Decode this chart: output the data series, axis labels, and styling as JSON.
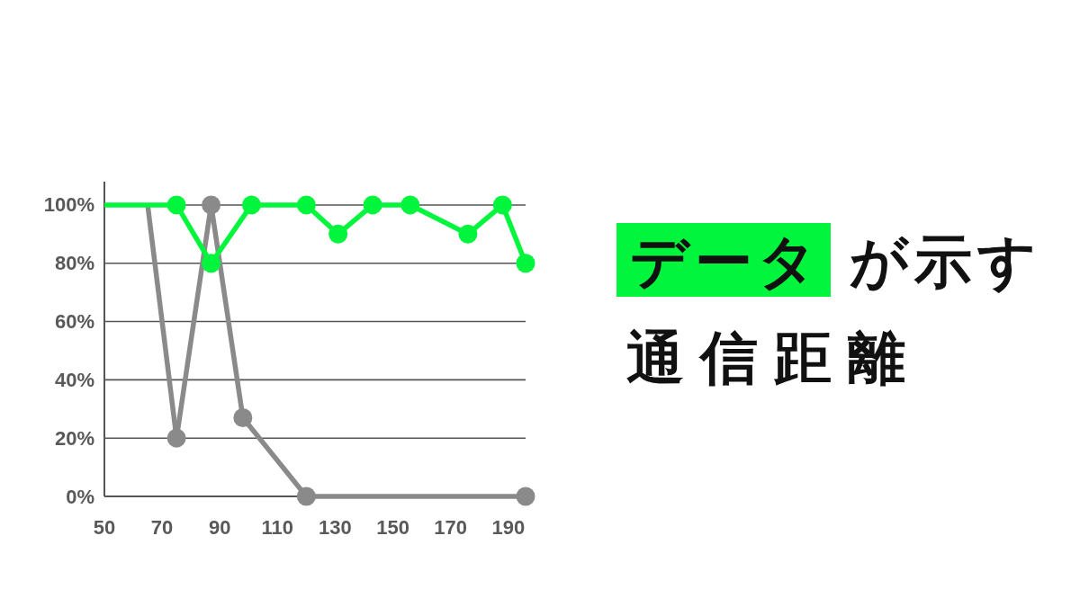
{
  "chart_data": {
    "type": "line",
    "title": "データが示す",
    "subtitle": "通信距離",
    "xlim": [
      50,
      196
    ],
    "xticks": [
      50,
      70,
      90,
      110,
      130,
      150,
      170,
      190
    ],
    "ylim": [
      0,
      108
    ],
    "yticks": [
      {
        "value": 0,
        "label": "0%"
      },
      {
        "value": 20,
        "label": "20%"
      },
      {
        "value": 40,
        "label": "40%"
      },
      {
        "value": 60,
        "label": "60%"
      },
      {
        "value": 80,
        "label": "80%"
      },
      {
        "value": 100,
        "label": "100%"
      }
    ],
    "grid": "y",
    "line_style": "solid",
    "series": [
      {
        "color": "#8a8a8a",
        "x": [
          65,
          75
        ],
        "values": [
          100,
          20
        ]
      },
      {
        "color": "#8a8a8a",
        "x": [
          75,
          87,
          98,
          120,
          196
        ],
        "values": [
          20,
          100,
          27,
          0,
          0
        ],
        "marker": "circle"
      },
      {
        "color": "#00f53c",
        "x": [
          50,
          75
        ],
        "values": [
          100,
          100
        ]
      },
      {
        "color": "#00f53c",
        "x": [
          75,
          87,
          101,
          120,
          131,
          143,
          156,
          176,
          188,
          196
        ],
        "values": [
          100,
          80,
          100,
          100,
          90,
          100,
          100,
          90,
          100,
          80
        ],
        "marker": "circle"
      }
    ]
  }
}
